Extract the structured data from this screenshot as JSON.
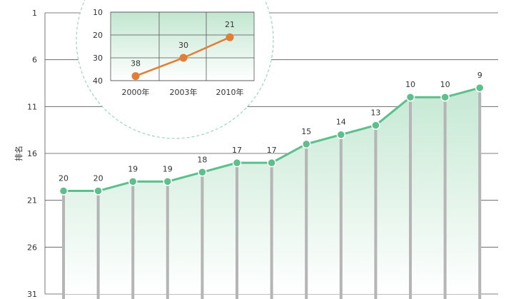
{
  "colors": {
    "main_line": "#5cbf8c",
    "main_fill_top": "#c5e8d3",
    "drop_line": "#b5b5b5",
    "grid": "#555555",
    "inset_line": "#e07f35",
    "inset_fill_top": "#c2e6d0",
    "circle_border": "#9fd6bc"
  },
  "chart_data": [
    {
      "type": "line",
      "ylabel": "排名",
      "y_reversed": true,
      "ylim": [
        1,
        31
      ],
      "yticks": [
        "1",
        "6",
        "11",
        "16",
        "21",
        "26",
        "31"
      ],
      "grid": "horizontal",
      "series": [
        {
          "values": [
            20,
            20,
            19,
            19,
            18,
            17,
            17,
            15,
            14,
            13,
            10,
            10,
            9
          ]
        }
      ],
      "data_labels": [
        "20",
        "20",
        "19",
        "19",
        "18",
        "17",
        "17",
        "15",
        "14",
        "13",
        "10",
        "10",
        "9"
      ]
    },
    {
      "type": "line",
      "placement": "inset top-left",
      "y_reversed": true,
      "ylim": [
        10,
        40
      ],
      "yticks": [
        "10",
        "20",
        "30",
        "40"
      ],
      "categories": [
        "2000年",
        "2003年",
        "2010年"
      ],
      "grid": "both",
      "series": [
        {
          "values": [
            38,
            30,
            21
          ]
        }
      ],
      "data_labels": [
        "38",
        "30",
        "21"
      ]
    }
  ]
}
